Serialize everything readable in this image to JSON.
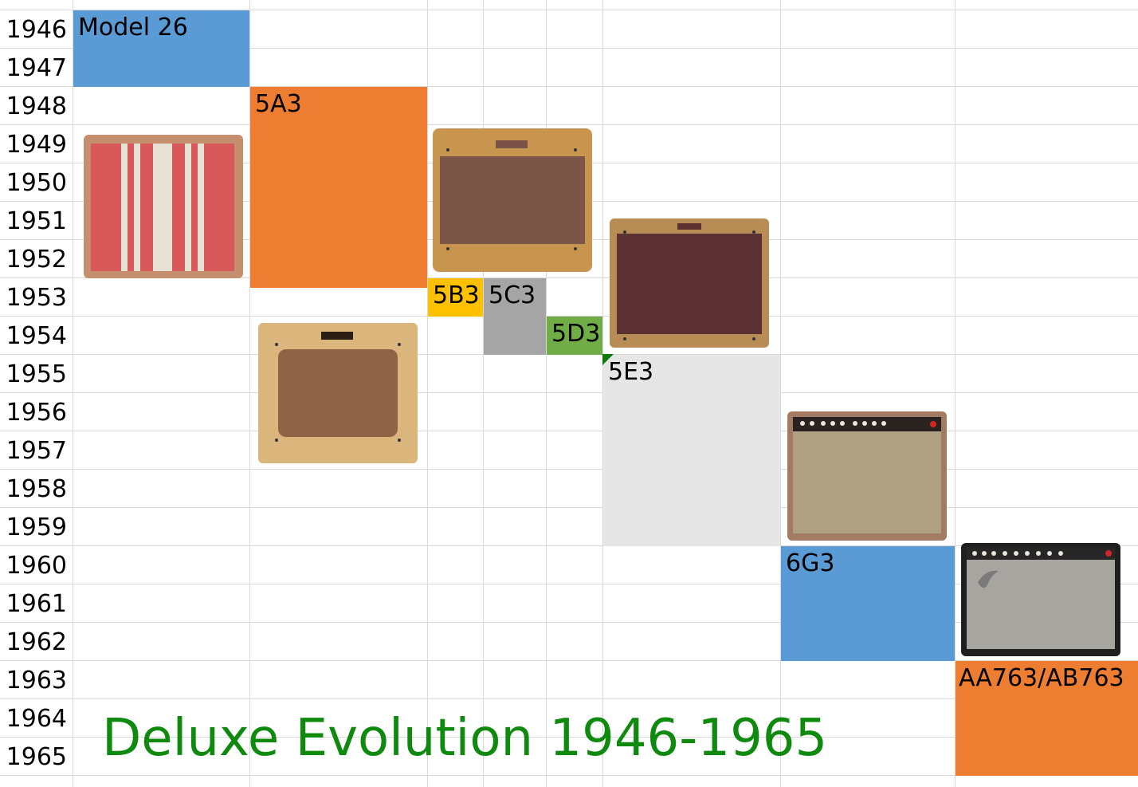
{
  "chart_data": {
    "type": "table",
    "title": "Deluxe Evolution 1946-1965",
    "years": [
      "1946",
      "1947",
      "1948",
      "1949",
      "1950",
      "1951",
      "1952",
      "1953",
      "1954",
      "1955",
      "1956",
      "1957",
      "1958",
      "1959",
      "1960",
      "1961",
      "1962",
      "1963",
      "1964",
      "1965"
    ],
    "models": [
      {
        "name": "Model 26",
        "start": 1946,
        "end": 1948,
        "color": "#5b9bd5"
      },
      {
        "name": "5A3",
        "start": 1948,
        "end": 1953,
        "color": "#ed7d31"
      },
      {
        "name": "5B3",
        "start": 1953,
        "end": 1954,
        "color": "#ffc000"
      },
      {
        "name": "5C3",
        "start": 1953,
        "end": 1955,
        "color": "#a5a5a5"
      },
      {
        "name": "5D3",
        "start": 1954,
        "end": 1955,
        "color": "#70ad47"
      },
      {
        "name": "5E3",
        "start": 1955,
        "end": 1960,
        "color": "#e7e6e6"
      },
      {
        "name": "6G3",
        "start": 1960,
        "end": 1963,
        "color": "#5b9bd5"
      },
      {
        "name": "AA763/AB763",
        "start": 1963,
        "end": 1965,
        "color": "#ed7d31"
      }
    ]
  },
  "colors": {
    "title": "#0f8a0f",
    "grid": "#d9d9d9"
  },
  "amp_illustrations": [
    {
      "model": "Model 26",
      "style": "striped-cloth"
    },
    {
      "model": "5A3",
      "style": "tweed-tv-front"
    },
    {
      "model": "5B3",
      "style": "tweed-wide-panel"
    },
    {
      "model": "5E3",
      "style": "tweed-dark-grille"
    },
    {
      "model": "6G3",
      "style": "brown-tolex-control-panel"
    },
    {
      "model": "AA763/AB763",
      "style": "black-face-grey-grille"
    }
  ]
}
